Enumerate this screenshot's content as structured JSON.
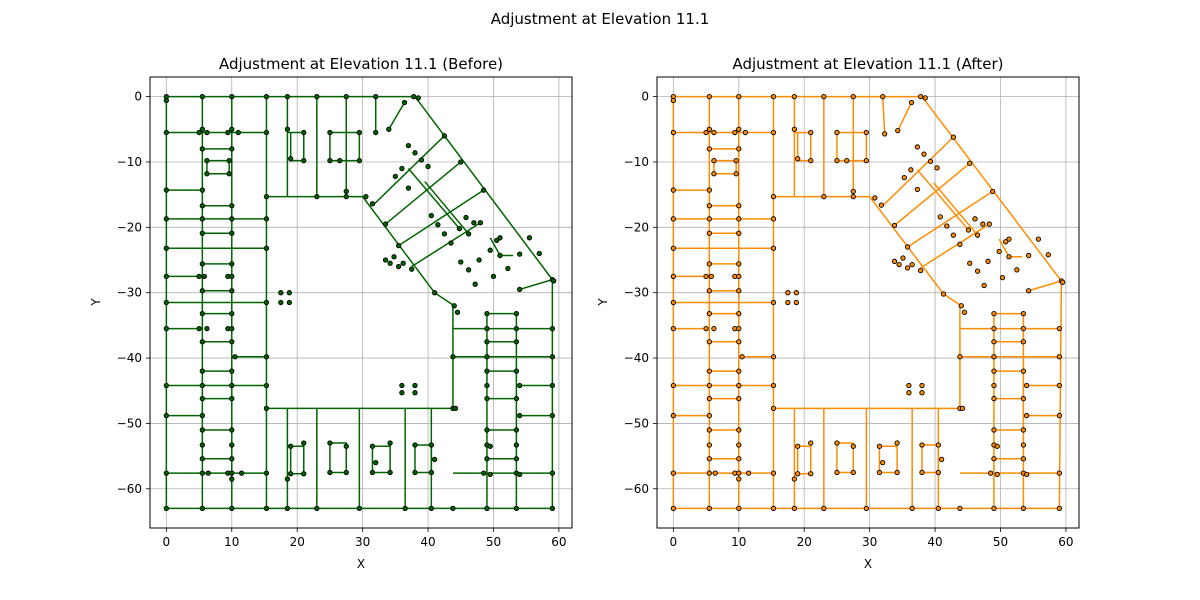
{
  "figure": {
    "suptitle": "Adjustment at Elevation 11.1"
  },
  "chart_data": [
    {
      "type": "network",
      "title": "Adjustment at Elevation 11.1 (Before)",
      "xlabel": "X",
      "ylabel": "Y",
      "xlim": [
        -2.5,
        62
      ],
      "ylim": [
        -66,
        3
      ],
      "xticks": [
        0,
        10,
        20,
        30,
        40,
        50,
        60
      ],
      "yticks": [
        0,
        -10,
        -20,
        -30,
        -40,
        -50,
        -60
      ],
      "grid": true,
      "line_color": "#006400",
      "node_color": "#006400",
      "variant": "before"
    },
    {
      "type": "network",
      "title": "Adjustment at Elevation 11.1 (After)",
      "xlabel": "X",
      "ylabel": "Y",
      "xlim": [
        -2.5,
        62
      ],
      "ylim": [
        -66,
        3
      ],
      "xticks": [
        0,
        10,
        20,
        30,
        40,
        50,
        60
      ],
      "yticks": [
        0,
        -10,
        -20,
        -30,
        -40,
        -50,
        -60
      ],
      "grid": true,
      "line_color": "#ff8c00",
      "node_color": "#ff8c00",
      "variant": "after"
    }
  ]
}
